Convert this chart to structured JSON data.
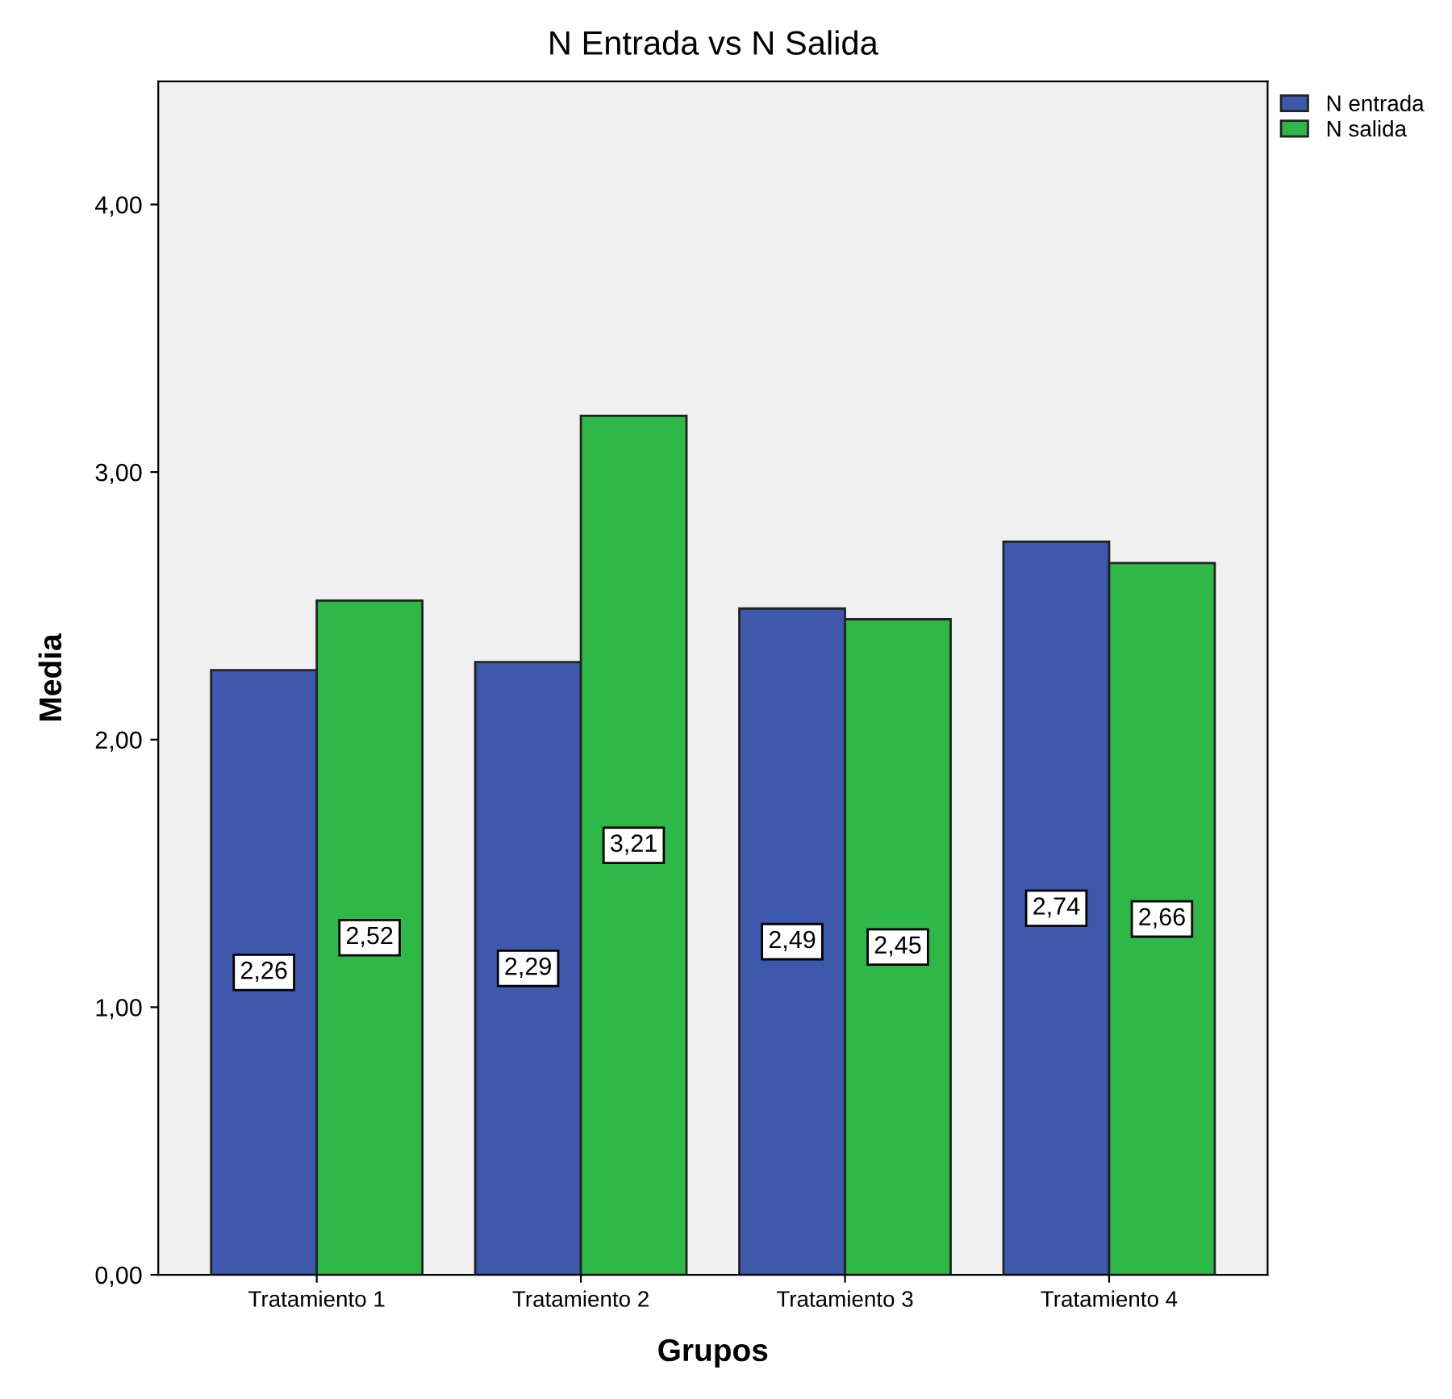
{
  "chart_data": {
    "type": "bar",
    "title": "N Entrada vs N Salida",
    "xlabel": "Grupos",
    "ylabel": "Media",
    "categories": [
      "Tratamiento 1",
      "Tratamiento 2",
      "Tratamiento 3",
      "Tratamiento 4"
    ],
    "series": [
      {
        "name": "N entrada",
        "color": "#3e58ac",
        "values": [
          2.26,
          2.29,
          2.49,
          2.74
        ],
        "value_labels": [
          "2,26",
          "2,29",
          "2,49",
          "2,74"
        ]
      },
      {
        "name": "N salida",
        "color": "#2eb848",
        "values": [
          2.52,
          3.21,
          2.45,
          2.66
        ],
        "value_labels": [
          "2,52",
          "3,21",
          "2,45",
          "2,66"
        ]
      }
    ],
    "ylim": [
      0,
      4.46
    ],
    "yticks": [
      {
        "value": 0,
        "label": "0,00"
      },
      {
        "value": 1,
        "label": "1,00"
      },
      {
        "value": 2,
        "label": "2,00"
      },
      {
        "value": 3,
        "label": "3,00"
      },
      {
        "value": 4,
        "label": "4,00"
      }
    ],
    "grid": false,
    "legend": "top right"
  }
}
